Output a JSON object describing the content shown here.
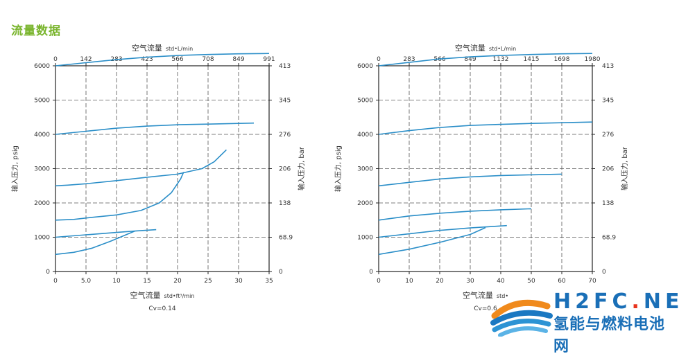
{
  "page": {
    "title": "流量数据"
  },
  "logo": {
    "main": "H2FC",
    "dot": ".",
    "tld": "NET",
    "sub": "氢能与燃料电池网"
  },
  "colors": {
    "title": "#7ab52e",
    "curve": "#2a8ec8",
    "grid": "#555555",
    "axis": "#222222"
  },
  "chart_data": [
    {
      "type": "line",
      "title": "",
      "top_xlabel_main": "空气流量",
      "top_xlabel_unit": "std•L/min",
      "top_xticks": [
        "0",
        "142",
        "283",
        "423",
        "566",
        "708",
        "849",
        "991"
      ],
      "xlabel_main": "空气流量",
      "xlabel_unit": "std•ft³/min",
      "xticks": [
        "0",
        "5.0",
        "10",
        "15",
        "20",
        "25",
        "30",
        "35"
      ],
      "xlim": [
        0,
        35
      ],
      "ylabel": "输入压力, psig",
      "yticks": [
        "0",
        "1000",
        "2000",
        "3000",
        "4000",
        "5000",
        "6000"
      ],
      "ylim": [
        0,
        6000
      ],
      "right_ylabel": "输入压力, bar",
      "right_yticks": [
        "0",
        "68.9",
        "138",
        "206",
        "276",
        "345",
        "413"
      ],
      "caption": "Cv=0.14",
      "series": [
        {
          "x": [
            0,
            5,
            10,
            15,
            20,
            25,
            30,
            35
          ],
          "y": [
            6000,
            6090,
            6180,
            6250,
            6300,
            6330,
            6350,
            6360
          ]
        },
        {
          "x": [
            0,
            5,
            10,
            15,
            20,
            25,
            30,
            32.5
          ],
          "y": [
            4000,
            4090,
            4180,
            4240,
            4280,
            4300,
            4320,
            4330
          ]
        },
        {
          "x": [
            0,
            2,
            5,
            10,
            15,
            20,
            21,
            24,
            26,
            28
          ],
          "y": [
            2500,
            2520,
            2560,
            2650,
            2750,
            2840,
            2880,
            3000,
            3200,
            3550
          ]
        },
        {
          "x": [
            0,
            3,
            6,
            10,
            14,
            17,
            19,
            20.5,
            21
          ],
          "y": [
            1500,
            1520,
            1580,
            1650,
            1780,
            2000,
            2300,
            2700,
            2900
          ]
        },
        {
          "x": [
            0,
            5,
            10,
            13,
            16.5
          ],
          "y": [
            1000,
            1070,
            1140,
            1180,
            1220
          ]
        },
        {
          "x": [
            0,
            3,
            6,
            9,
            13
          ],
          "y": [
            500,
            560,
            680,
            880,
            1180
          ]
        }
      ]
    },
    {
      "type": "line",
      "title": "",
      "top_xlabel_main": "空气流量",
      "top_xlabel_unit": "std•L/min",
      "top_xticks": [
        "0",
        "283",
        "566",
        "849",
        "1132",
        "1415",
        "1698",
        "1980"
      ],
      "xlabel_main": "空气流量",
      "xlabel_unit": "std•",
      "xticks": [
        "0",
        "10",
        "20",
        "30",
        "40",
        "50",
        "60",
        "70"
      ],
      "xlim": [
        0,
        70
      ],
      "ylabel": "输入压力, psig",
      "yticks": [
        "0",
        "1000",
        "2000",
        "3000",
        "4000",
        "5000",
        "6000"
      ],
      "ylim": [
        0,
        6000
      ],
      "right_ylabel": "输入压力, bar",
      "right_yticks": [
        "0",
        "68.9",
        "138",
        "206",
        "276",
        "345",
        "413"
      ],
      "caption": "Cv=0.6",
      "series": [
        {
          "x": [
            0,
            10,
            20,
            30,
            40,
            50,
            60,
            70
          ],
          "y": [
            6000,
            6100,
            6200,
            6260,
            6300,
            6330,
            6350,
            6360
          ]
        },
        {
          "x": [
            0,
            10,
            20,
            30,
            40,
            50,
            60,
            70
          ],
          "y": [
            4000,
            4110,
            4200,
            4260,
            4290,
            4320,
            4340,
            4360
          ]
        },
        {
          "x": [
            0,
            10,
            20,
            30,
            40,
            50,
            60
          ],
          "y": [
            2500,
            2600,
            2700,
            2760,
            2800,
            2820,
            2840
          ]
        },
        {
          "x": [
            0,
            10,
            20,
            30,
            40,
            50
          ],
          "y": [
            1500,
            1620,
            1700,
            1760,
            1800,
            1830
          ]
        },
        {
          "x": [
            0,
            10,
            20,
            30,
            42
          ],
          "y": [
            1000,
            1100,
            1200,
            1270,
            1340
          ]
        },
        {
          "x": [
            0,
            10,
            20,
            30,
            35
          ],
          "y": [
            500,
            650,
            850,
            1080,
            1280
          ]
        }
      ]
    }
  ]
}
